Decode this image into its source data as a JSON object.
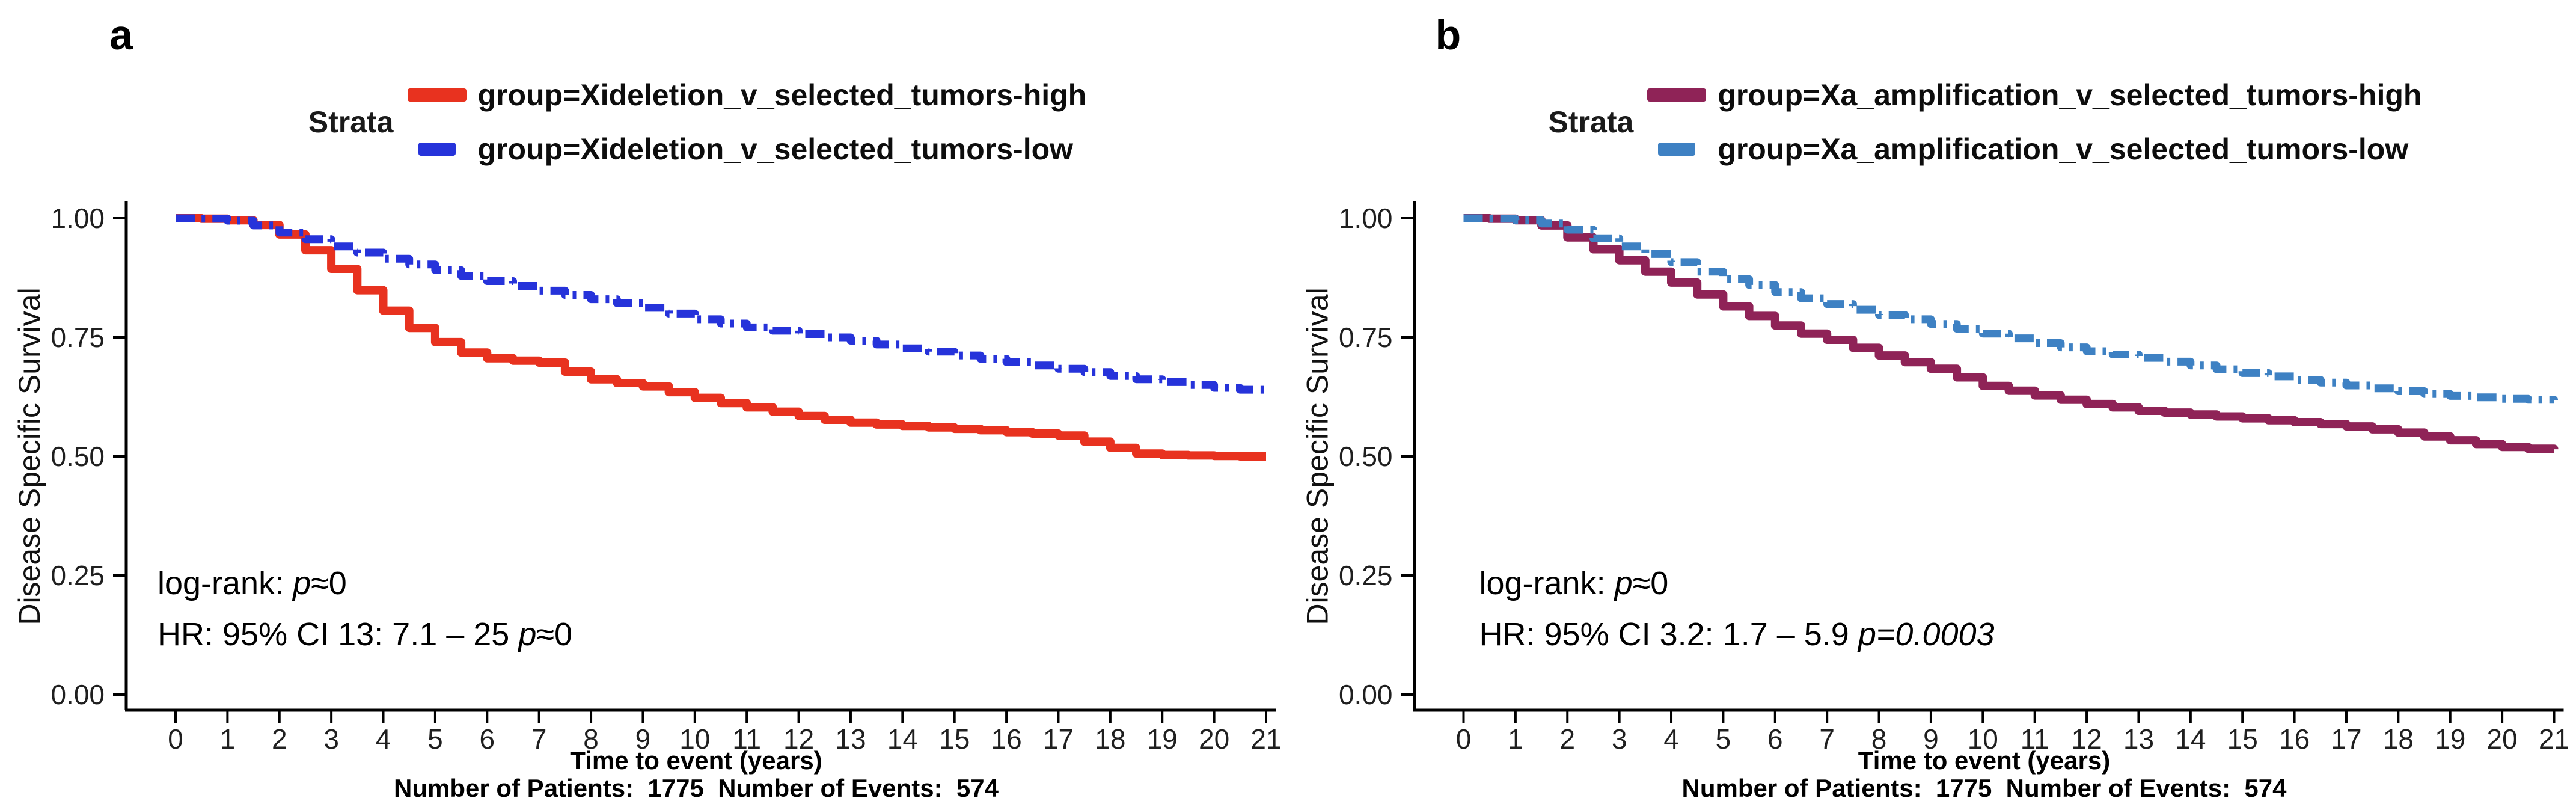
{
  "figure": {
    "panels": [
      {
        "panel_label": "a",
        "legend_title": "Strata",
        "legend": [
          {
            "label": "group=Xideletion_v_selected_tumors-high"
          },
          {
            "label": "group=Xideletion_v_selected_tumors-low"
          }
        ],
        "ylabel": "Disease Specific Survival",
        "xlabel": "Time to event (years)",
        "footer": "Number of Patients:  1775  Number of Events:  574",
        "anno1": {
          "pre": "log-rank: ",
          "it": "p",
          "post": "≈0"
        },
        "anno2": {
          "pre": "HR: 95% CI 13: 7.1 – 25 ",
          "it": "p",
          "post": "≈0"
        }
      },
      {
        "panel_label": "b",
        "legend_title": "Strata",
        "legend": [
          {
            "label": "group=Xa_amplification_v_selected_tumors-high"
          },
          {
            "label": "group=Xa_amplification_v_selected_tumors-low"
          }
        ],
        "ylabel": "Disease Specific Survival",
        "xlabel": "Time to event (years)",
        "footer": "Number of Patients:  1775  Number of Events:  574",
        "anno1": {
          "pre": "log-rank: ",
          "it": "p",
          "post": "≈0"
        },
        "anno2": {
          "pre": "HR: 95% CI 3.2: 1.7 – 5.9 ",
          "it": "p=0.0003",
          "post": ""
        }
      }
    ]
  },
  "chart_data": [
    {
      "type": "line",
      "subtype": "kaplan-meier-step",
      "title": "a",
      "xlabel": "Time to event (years)",
      "ylabel": "Disease Specific Survival",
      "xlim": [
        0,
        21
      ],
      "ylim": [
        0,
        1
      ],
      "xticks": [
        0,
        1,
        2,
        3,
        4,
        5,
        6,
        7,
        8,
        9,
        10,
        11,
        12,
        13,
        14,
        15,
        16,
        17,
        18,
        19,
        20,
        21
      ],
      "yticks": [
        0,
        0.25,
        0.5,
        0.75,
        1.0
      ],
      "ytick_labels": [
        "0.00",
        "0.25",
        "0.50",
        "0.75",
        "1.00"
      ],
      "legend_position": "top",
      "grid": false,
      "x_step": 0.5,
      "annotations": [
        "log-rank: p≈0",
        "HR: 95% CI 13: 7.1 – 25 p≈0"
      ],
      "footer_stats": {
        "number_of_patients": 1775,
        "number_of_events": 574
      },
      "series": [
        {
          "name": "group=Xideletion_v_selected_tumors-high",
          "color": "#E8321F",
          "linetype": "solid",
          "values": [
            1.0,
            0.999,
            0.996,
            0.986,
            0.966,
            0.933,
            0.894,
            0.849,
            0.806,
            0.77,
            0.74,
            0.718,
            0.706,
            0.701,
            0.697,
            0.678,
            0.662,
            0.654,
            0.647,
            0.635,
            0.623,
            0.612,
            0.603,
            0.594,
            0.585,
            0.577,
            0.571,
            0.567,
            0.564,
            0.561,
            0.558,
            0.555,
            0.551,
            0.548,
            0.544,
            0.531,
            0.518,
            0.506,
            0.503,
            0.502,
            0.501,
            0.5,
            0.5
          ]
        },
        {
          "name": "group=Xideletion_v_selected_tumors-low",
          "color": "#2633DA",
          "linetype": "dashed",
          "values": [
            1.0,
            0.999,
            0.995,
            0.985,
            0.97,
            0.956,
            0.941,
            0.928,
            0.915,
            0.903,
            0.891,
            0.879,
            0.868,
            0.858,
            0.848,
            0.839,
            0.83,
            0.822,
            0.812,
            0.8,
            0.788,
            0.779,
            0.771,
            0.764,
            0.757,
            0.75,
            0.743,
            0.735,
            0.727,
            0.72,
            0.712,
            0.705,
            0.698,
            0.691,
            0.684,
            0.677,
            0.669,
            0.662,
            0.656,
            0.65,
            0.644,
            0.64,
            0.637
          ]
        }
      ]
    },
    {
      "type": "line",
      "subtype": "kaplan-meier-step",
      "title": "b",
      "xlabel": "Time to event (years)",
      "ylabel": "Disease Specific Survival",
      "xlim": [
        0,
        21
      ],
      "ylim": [
        0,
        1
      ],
      "xticks": [
        0,
        1,
        2,
        3,
        4,
        5,
        6,
        7,
        8,
        9,
        10,
        11,
        12,
        13,
        14,
        15,
        16,
        17,
        18,
        19,
        20,
        21
      ],
      "yticks": [
        0,
        0.25,
        0.5,
        0.75,
        1.0
      ],
      "ytick_labels": [
        "0.00",
        "0.25",
        "0.50",
        "0.75",
        "1.00"
      ],
      "legend_position": "top",
      "grid": false,
      "x_step": 0.5,
      "annotations": [
        "log-rank: p≈0",
        "HR: 95% CI 3.2: 1.7 – 5.9 p=0.0003"
      ],
      "footer_stats": {
        "number_of_patients": 1775,
        "number_of_events": 574
      },
      "series": [
        {
          "name": "group=Xa_amplification_v_selected_tumors-high",
          "color": "#8F2357",
          "linetype": "solid",
          "values": [
            1.0,
            0.999,
            0.996,
            0.985,
            0.96,
            0.935,
            0.912,
            0.888,
            0.865,
            0.84,
            0.815,
            0.795,
            0.775,
            0.758,
            0.745,
            0.728,
            0.712,
            0.698,
            0.684,
            0.666,
            0.648,
            0.638,
            0.628,
            0.619,
            0.61,
            0.603,
            0.596,
            0.592,
            0.588,
            0.584,
            0.58,
            0.576,
            0.572,
            0.568,
            0.563,
            0.557,
            0.55,
            0.542,
            0.534,
            0.526,
            0.52,
            0.516,
            0.515
          ]
        },
        {
          "name": "group=Xa_amplification_v_selected_tumors-low",
          "color": "#3E81C3",
          "linetype": "dashed",
          "values": [
            1.0,
            0.999,
            0.996,
            0.989,
            0.976,
            0.958,
            0.941,
            0.925,
            0.908,
            0.888,
            0.872,
            0.86,
            0.845,
            0.832,
            0.82,
            0.808,
            0.797,
            0.788,
            0.778,
            0.768,
            0.758,
            0.748,
            0.738,
            0.729,
            0.721,
            0.714,
            0.707,
            0.699,
            0.691,
            0.683,
            0.675,
            0.668,
            0.661,
            0.655,
            0.649,
            0.643,
            0.637,
            0.631,
            0.627,
            0.624,
            0.621,
            0.619,
            0.618
          ]
        }
      ]
    }
  ]
}
